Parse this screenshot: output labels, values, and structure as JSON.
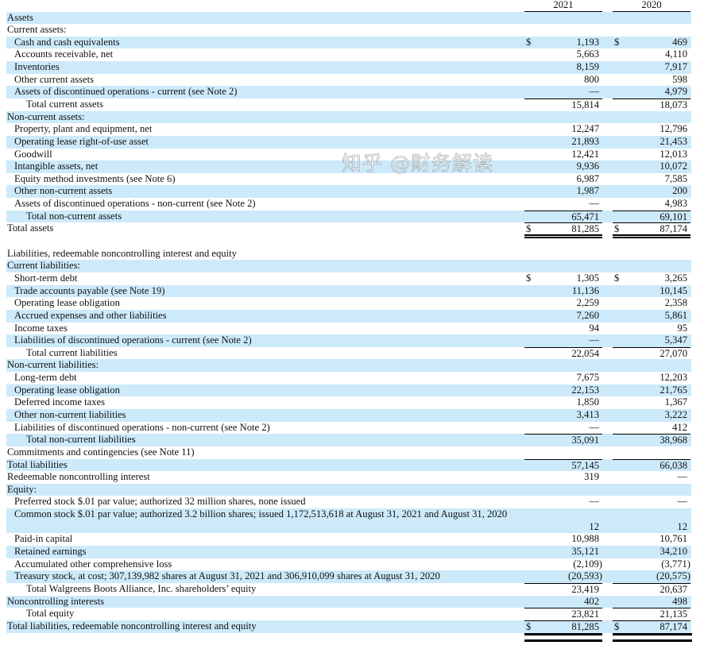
{
  "columns": [
    "2021",
    "2020"
  ],
  "rows": [
    {
      "label": "Assets",
      "level": 0
    },
    {
      "label": "Current assets:",
      "level": 0
    },
    {
      "label": "Cash and cash equivalents",
      "level": 1,
      "cur": true,
      "v": [
        "1,193",
        "469"
      ]
    },
    {
      "label": "Accounts receivable, net",
      "level": 1,
      "v": [
        "5,663",
        "4,110"
      ]
    },
    {
      "label": "Inventories",
      "level": 1,
      "v": [
        "8,159",
        "7,917"
      ]
    },
    {
      "label": "Other current assets",
      "level": 1,
      "v": [
        "800",
        "598"
      ]
    },
    {
      "label": "Assets of discontinued operations - current (see Note 2)",
      "level": 1,
      "v": [
        "—",
        "4,979"
      ]
    },
    {
      "label": "Total current assets",
      "level": 2,
      "line": true,
      "v": [
        "15,814",
        "18,073"
      ]
    },
    {
      "label": "Non-current assets:",
      "level": 0
    },
    {
      "label": "Property, plant and equipment, net",
      "level": 1,
      "v": [
        "12,247",
        "12,796"
      ]
    },
    {
      "label": "Operating lease right-of-use asset",
      "level": 1,
      "v": [
        "21,893",
        "21,453"
      ]
    },
    {
      "label": "Goodwill",
      "level": 1,
      "v": [
        "12,421",
        "12,013"
      ]
    },
    {
      "label": "Intangible assets, net",
      "level": 1,
      "v": [
        "9,936",
        "10,072"
      ]
    },
    {
      "label": "Equity method investments (see Note 6)",
      "level": 1,
      "v": [
        "6,987",
        "7,585"
      ]
    },
    {
      "label": "Other non-current assets",
      "level": 1,
      "v": [
        "1,987",
        "200"
      ]
    },
    {
      "label": "Assets of discontinued operations - non-current (see Note 2)",
      "level": 1,
      "v": [
        "—",
        "4,983"
      ]
    },
    {
      "label": "Total non-current assets",
      "level": 2,
      "line": true,
      "v": [
        "65,471",
        "69,101"
      ]
    },
    {
      "label": "Total assets",
      "level": 0,
      "line": true,
      "dbl": true,
      "cur": true,
      "v": [
        "81,285",
        "87,174"
      ]
    },
    {
      "spacer": true
    },
    {
      "label": "Liabilities, redeemable noncontrolling interest and equity",
      "level": 0
    },
    {
      "label": "Current liabilities:",
      "level": 0
    },
    {
      "label": "Short-term debt",
      "level": 1,
      "cur": true,
      "v": [
        "1,305",
        "3,265"
      ]
    },
    {
      "label": "Trade accounts payable (see Note 19)",
      "level": 1,
      "v": [
        "11,136",
        "10,145"
      ]
    },
    {
      "label": "Operating lease obligation",
      "level": 1,
      "v": [
        "2,259",
        "2,358"
      ]
    },
    {
      "label": "Accrued expenses and other liabilities",
      "level": 1,
      "v": [
        "7,260",
        "5,861"
      ]
    },
    {
      "label": "Income taxes",
      "level": 1,
      "v": [
        "94",
        "95"
      ]
    },
    {
      "label": "Liabilities of discontinued operations - current (see Note 2)",
      "level": 1,
      "v": [
        "—",
        "5,347"
      ]
    },
    {
      "label": "Total current liabilities",
      "level": 2,
      "line": true,
      "v": [
        "22,054",
        "27,070"
      ]
    },
    {
      "label": "Non-current liabilities:",
      "level": 0
    },
    {
      "label": "Long-term debt",
      "level": 1,
      "v": [
        "7,675",
        "12,203"
      ]
    },
    {
      "label": "Operating lease obligation",
      "level": 1,
      "v": [
        "22,153",
        "21,765"
      ]
    },
    {
      "label": "Deferred income taxes",
      "level": 1,
      "v": [
        "1,850",
        "1,367"
      ]
    },
    {
      "label": "Other non-current liabilities",
      "level": 1,
      "v": [
        "3,413",
        "3,222"
      ]
    },
    {
      "label": "Liabilities of discontinued operations - non-current (see Note 2)",
      "level": 1,
      "v": [
        "—",
        "412"
      ]
    },
    {
      "label": "Total non-current liabilities",
      "level": 2,
      "line": true,
      "v": [
        "35,091",
        "38,968"
      ]
    },
    {
      "label": "Commitments and contingencies (see Note 11)",
      "level": 0
    },
    {
      "label": "Total liabilities",
      "level": 0,
      "line": true,
      "v": [
        "57,145",
        "66,038"
      ]
    },
    {
      "label": "Redeemable noncontrolling interest",
      "level": 0,
      "v": [
        "319",
        "—"
      ]
    },
    {
      "label": "Equity:",
      "level": 0
    },
    {
      "label": "Preferred stock $.01 par value; authorized 32 million shares, none issued",
      "level": 1,
      "v": [
        "—",
        "—"
      ]
    },
    {
      "label": "Common stock $.01 par value; authorized 3.2 billion shares; issued 1,172,513,618 at August 31, 2021 and August 31, 2020",
      "level": 1,
      "two": true,
      "v": [
        "12",
        "12"
      ]
    },
    {
      "label": "Paid-in capital",
      "level": 1,
      "v": [
        "10,988",
        "10,761"
      ]
    },
    {
      "label": "Retained earnings",
      "level": 1,
      "v": [
        "35,121",
        "34,210"
      ]
    },
    {
      "label": "Accumulated other comprehensive loss",
      "level": 1,
      "v": [
        "(2,109)",
        "(3,771)"
      ]
    },
    {
      "label": "Treasury stock, at cost; 307,139,982 shares at August 31, 2021 and 306,910,099 shares at August 31, 2020",
      "level": 1,
      "v": [
        "(20,593)",
        "(20,575)"
      ]
    },
    {
      "label": "Total Walgreens Boots Alliance, Inc. shareholders’ equity",
      "level": 2,
      "line": true,
      "v": [
        "23,419",
        "20,637"
      ]
    },
    {
      "label": "Noncontrolling interests",
      "level": 0,
      "v": [
        "402",
        "498"
      ]
    },
    {
      "label": "Total equity",
      "level": 2,
      "line": true,
      "v": [
        "23,821",
        "21,135"
      ]
    },
    {
      "label": "Total liabilities, redeemable noncontrolling interest and equity",
      "level": 0,
      "line": true,
      "cur": true,
      "v": [
        "81,285",
        "87,174"
      ]
    }
  ],
  "currency_symbol": "$",
  "watermark": "知乎 @财务解读",
  "colors": {
    "stripe": "#cdeafa"
  }
}
